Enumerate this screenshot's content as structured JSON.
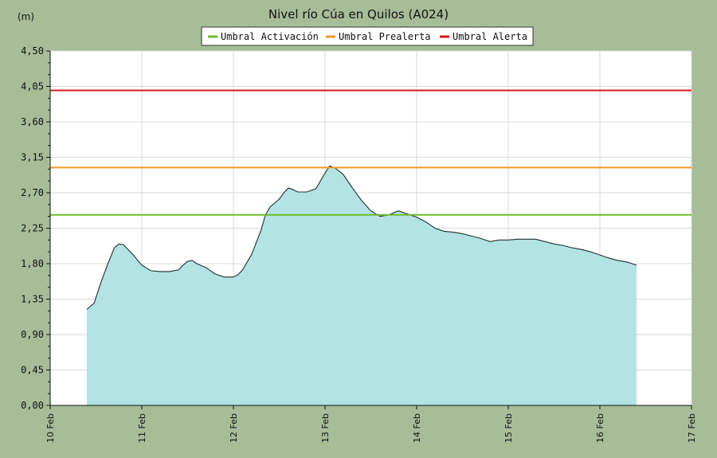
{
  "chart_data": {
    "type": "area",
    "title": "Nivel río Cúa en Quilos  (A024)",
    "ylabel": "(m)",
    "ylim": [
      0,
      4.5
    ],
    "yticks": [
      "0,00",
      "0,45",
      "0,90",
      "1,35",
      "1,80",
      "2,25",
      "2,70",
      "3,15",
      "3,60",
      "4,05",
      "4,50"
    ],
    "xticks": [
      "10 Feb",
      "11 Feb",
      "12 Feb",
      "13 Feb",
      "14 Feb",
      "15 Feb",
      "16 Feb",
      "17 Feb"
    ],
    "xlim_days": [
      10,
      17
    ],
    "grid": true,
    "legend_position": "top-center",
    "area_color": "#b3e3e3",
    "series": [
      {
        "x": [
          10.4,
          10.48,
          10.55,
          10.63,
          10.7,
          10.75,
          10.8,
          10.9,
          11.0,
          11.1,
          11.2,
          11.3,
          11.4,
          11.45,
          11.5,
          11.55,
          11.6,
          11.7,
          11.8,
          11.9,
          12.0,
          12.05,
          12.1,
          12.2,
          12.3,
          12.35,
          12.4,
          12.5,
          12.55,
          12.6,
          12.65,
          12.7,
          12.8,
          12.9,
          13.0,
          13.05,
          13.1,
          13.15,
          13.2,
          13.3,
          13.4,
          13.5,
          13.6,
          13.7,
          13.8,
          13.9,
          14.0,
          14.1,
          14.2,
          14.3,
          14.4,
          14.5,
          14.6,
          14.7,
          14.8,
          14.9,
          15.0,
          15.1,
          15.2,
          15.3,
          15.4,
          15.5,
          15.6,
          15.7,
          15.8,
          15.9,
          16.0,
          16.1,
          16.2,
          16.3,
          16.4
        ],
        "y": [
          1.22,
          1.3,
          1.55,
          1.8,
          2.0,
          2.05,
          2.04,
          1.92,
          1.78,
          1.71,
          1.7,
          1.7,
          1.72,
          1.78,
          1.83,
          1.84,
          1.8,
          1.75,
          1.67,
          1.63,
          1.63,
          1.66,
          1.72,
          1.92,
          2.22,
          2.42,
          2.52,
          2.62,
          2.7,
          2.76,
          2.74,
          2.71,
          2.71,
          2.75,
          2.95,
          3.04,
          3.02,
          2.98,
          2.93,
          2.76,
          2.6,
          2.47,
          2.4,
          2.42,
          2.47,
          2.43,
          2.39,
          2.33,
          2.25,
          2.21,
          2.2,
          2.18,
          2.15,
          2.12,
          2.08,
          2.1,
          2.1,
          2.11,
          2.11,
          2.11,
          2.08,
          2.05,
          2.03,
          2.0,
          1.98,
          1.95,
          1.91,
          1.87,
          1.84,
          1.82,
          1.78
        ]
      }
    ],
    "thresholds": [
      {
        "name": "Umbral Activación",
        "value": 2.42,
        "color": "#6cbd2c"
      },
      {
        "name": "Umbral Prealerta",
        "value": 3.02,
        "color": "#f59a24"
      },
      {
        "name": "Umbral Alerta",
        "value": 4.0,
        "color": "#d8151b"
      }
    ]
  }
}
